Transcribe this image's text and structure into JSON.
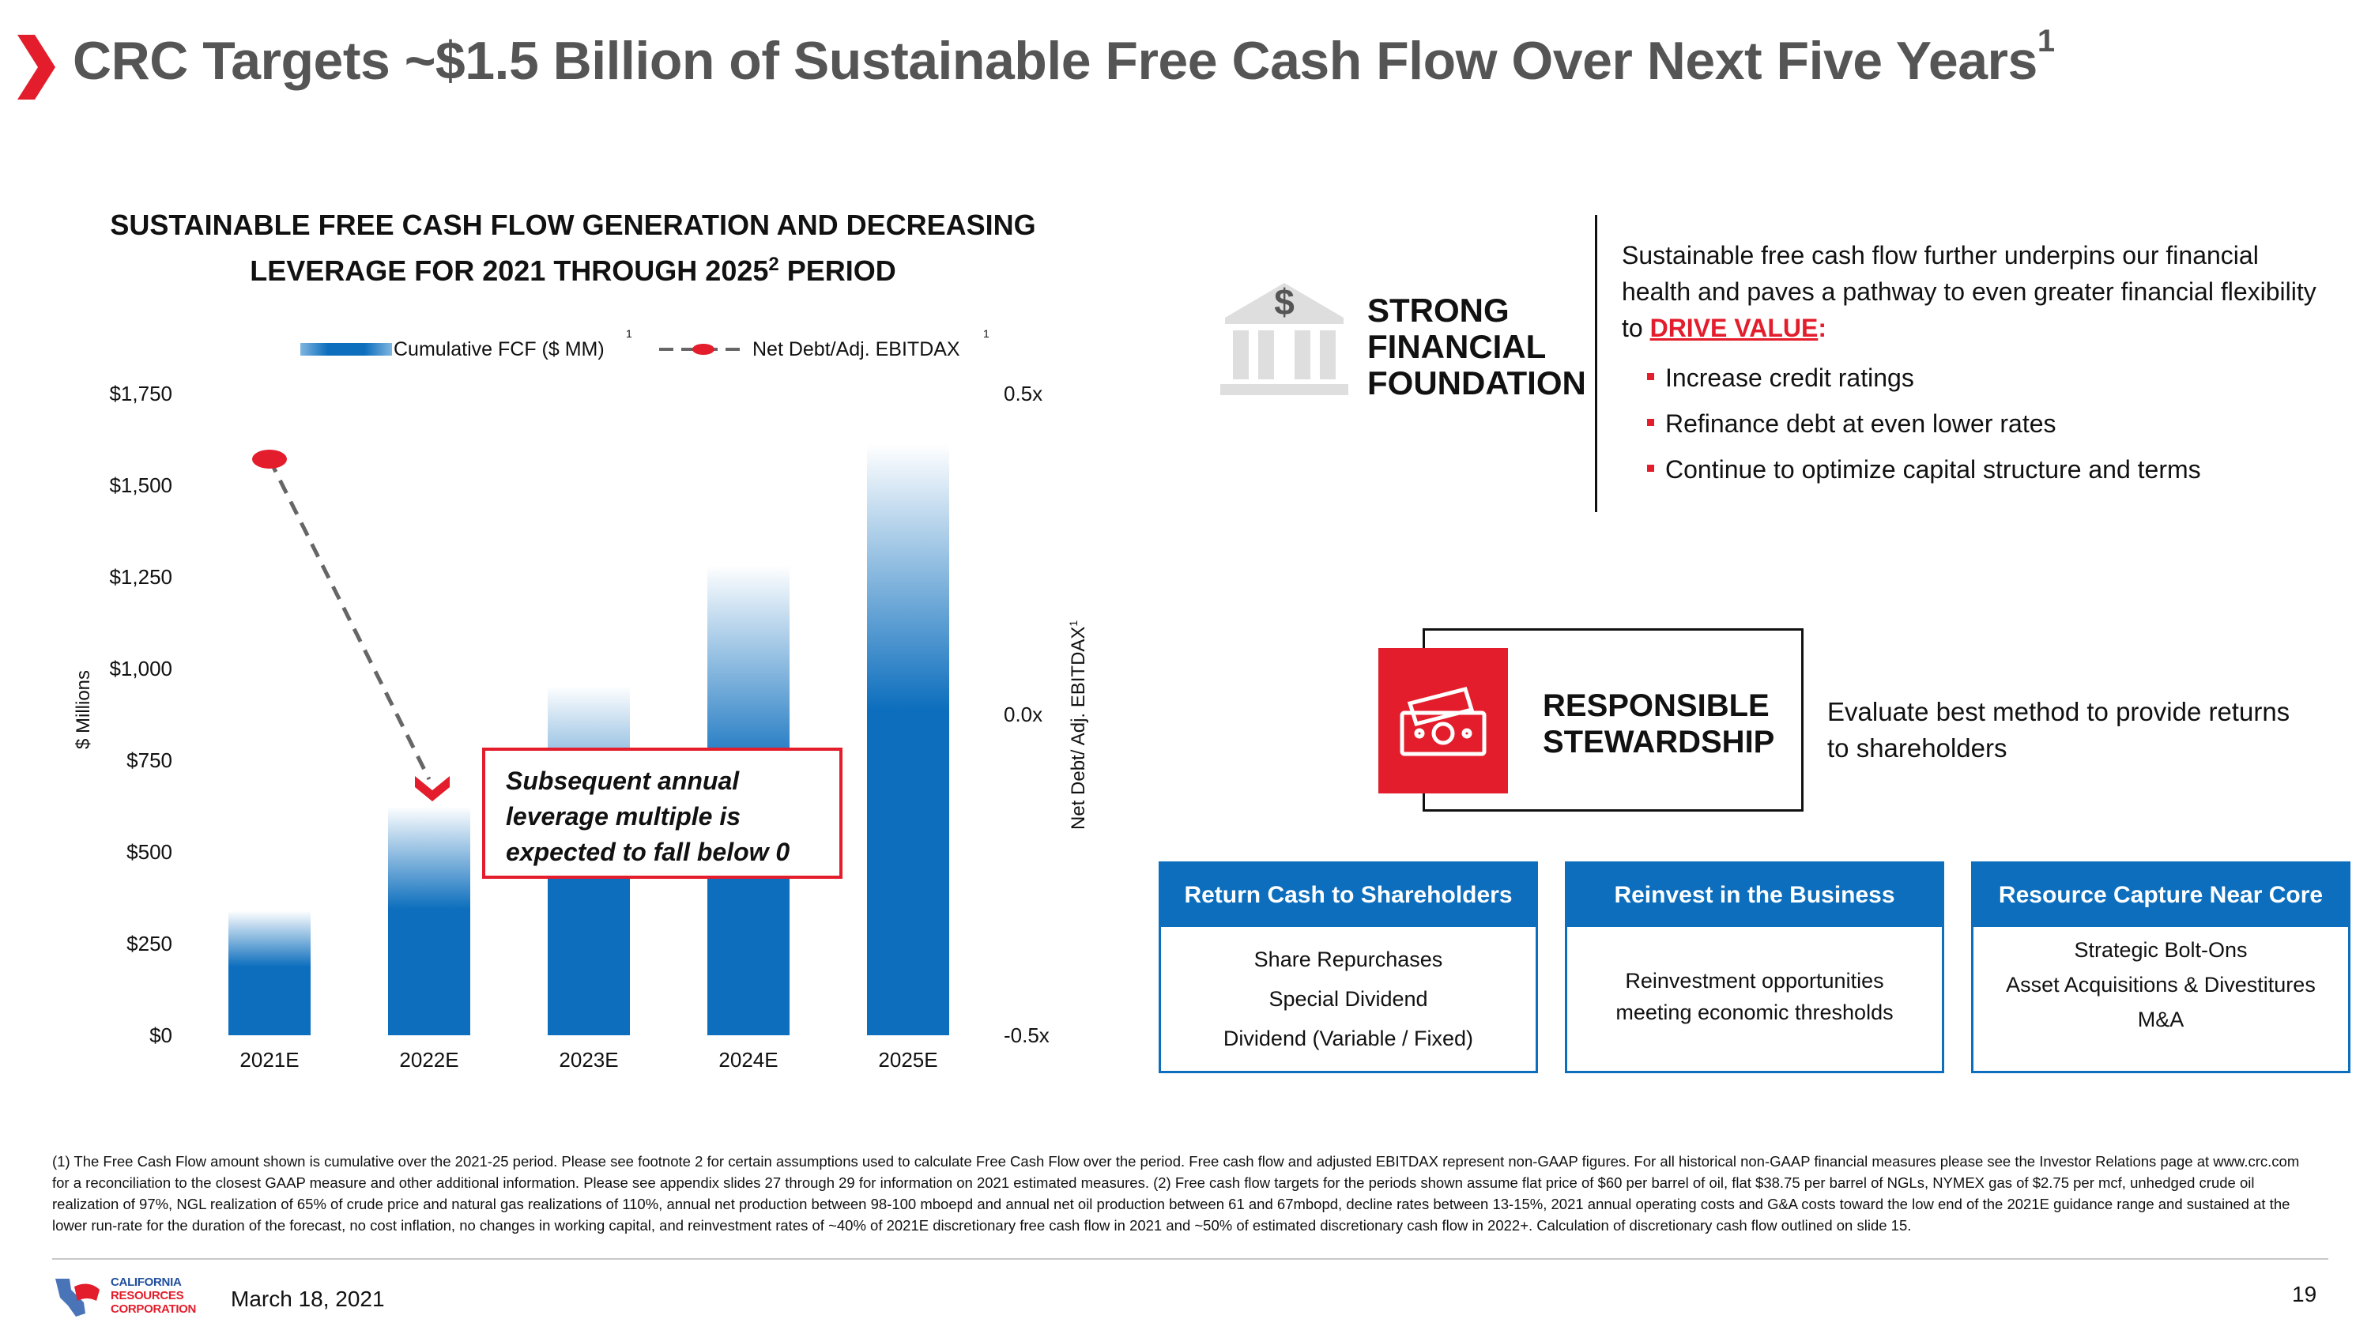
{
  "title": {
    "text": "CRC Targets ~$1.5 Billion of Sustainable Free Cash Flow Over Next Five Years",
    "sup": "1"
  },
  "chart_heading": {
    "line1": "SUSTAINABLE FREE CASH FLOW GENERATION AND DECREASING",
    "line2": "LEVERAGE FOR 2021 THROUGH 2025",
    "line2_sup": "2",
    "line2_end": " PERIOD"
  },
  "legend": {
    "bar_label": "Cumulative FCF ($ MM)",
    "bar_note": "1",
    "line_label": "Net Debt/Adj. EBITDAX",
    "line_note": "1"
  },
  "axes": {
    "y_label": "$ Millions",
    "y2_label": "Net Debt/ Adj. EBITDAX",
    "y2_note": "1"
  },
  "callout": "Subsequent annual leverage multiple is expected to fall below 0",
  "chart_data": {
    "type": "bar",
    "categories": [
      "2021E",
      "2022E",
      "2023E",
      "2024E",
      "2025E"
    ],
    "series": [
      {
        "name": "Cumulative FCF ($ MM)",
        "type": "bar",
        "axis": "left",
        "values": [
          340,
          625,
          955,
          1285,
          1615
        ]
      },
      {
        "name": "Net Debt/Adj. EBITDAX",
        "type": "line",
        "axis": "right",
        "values": [
          0.4,
          -0.1,
          null,
          null,
          null
        ]
      }
    ],
    "y_ticks": [
      "$0",
      "$250",
      "$500",
      "$750",
      "$1,000",
      "$1,250",
      "$1,500",
      "$1,750"
    ],
    "y2_ticks": [
      "-0.5x",
      "0.0x",
      "0.5x"
    ],
    "ylim": [
      0,
      1750
    ],
    "y2lim": [
      -0.5,
      0.5
    ],
    "colors": {
      "bar": "#0c6ebd",
      "line": "#e31d2b"
    }
  },
  "strong": {
    "label_lines": [
      "STRONG",
      "FINANCIAL",
      "FOUNDATION"
    ],
    "icon": "bank-dollar-icon",
    "intro_before": "Sustainable free cash flow further underpins our financial health and paves a pathway to even greater financial flexibility to ",
    "intro_highlight": "DRIVE VALUE",
    "intro_after": ":",
    "bullets": [
      "Increase credit ratings",
      "Refinance debt at even lower rates",
      "Continue to optimize capital structure and terms"
    ]
  },
  "stewardship": {
    "label_lines": [
      "RESPONSIBLE",
      "STEWARDSHIP"
    ],
    "icon": "cash-icon",
    "description": "Evaluate best method to provide returns to shareholders"
  },
  "panels": [
    {
      "title": "Return Cash to Shareholders",
      "items": [
        "Share Repurchases",
        "Special Dividend",
        "Dividend (Variable / Fixed)"
      ]
    },
    {
      "title": "Reinvest in the Business",
      "items": [
        "Reinvestment opportunities meeting economic thresholds"
      ]
    },
    {
      "title": "Resource Capture Near Core",
      "items": [
        "Strategic Bolt-Ons",
        "Asset Acquisitions & Divestitures",
        "M&A"
      ]
    }
  ],
  "footnote": "(1) The Free Cash Flow amount shown is cumulative over the 2021-25 period. Please see footnote 2 for certain assumptions used to calculate Free Cash Flow over the period. Free cash flow and adjusted EBITDAX represent non-GAAP figures. For all historical non-GAAP financial measures please see the Investor Relations page at www.crc.com for a reconciliation to the closest GAAP measure and other additional information. Please see appendix slides 27 through 29 for information on 2021 estimated measures. (2) Free cash flow targets for the periods shown assume flat price of $60 per barrel of oil, flat $38.75 per barrel of NGLs, NYMEX gas of $2.75 per mcf, unhedged crude oil realization of 97%, NGL realization of 65% of crude price and natural gas realizations of 110%, annual net production between 98-100 mboepd and annual net oil production between 61 and 67mbopd, decline rates between 13-15%, 2021 annual operating costs and G&A costs toward the low end of the 2021E guidance range and sustained at the lower run-rate for the duration of the forecast, no cost inflation, no changes in working capital, and reinvestment rates of ~40% of 2021E discretionary free cash flow in 2021 and ~50% of estimated discretionary cash flow in 2022+. Calculation of discretionary cash flow outlined on slide 15.",
  "footer": {
    "date": "March 18, 2021",
    "page": "19",
    "logo_lines": [
      "CALIFORNIA",
      "RESOURCES",
      "CORPORATION"
    ]
  }
}
